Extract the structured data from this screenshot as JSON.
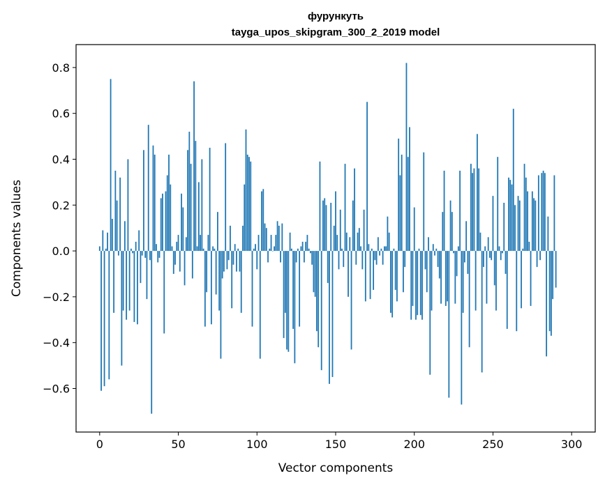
{
  "chart_data": {
    "type": "bar",
    "title": "фурункуть",
    "subtitle": "tayga_upos_skipgram_300_2_2019 model",
    "xlabel": "Vector components",
    "ylabel": "Components values",
    "xlim": [
      -15,
      315
    ],
    "ylim": [
      -0.79,
      0.9
    ],
    "xticks": [
      0,
      50,
      100,
      150,
      200,
      250,
      300
    ],
    "yticks": [
      -0.6,
      -0.4,
      -0.2,
      0.0,
      0.2,
      0.4,
      0.6,
      0.8
    ],
    "ytick_labels": [
      "−0.6",
      "−0.4",
      "−0.2",
      "0.0",
      "0.2",
      "0.4",
      "0.6",
      "0.8"
    ],
    "bar_color": "#1f77b4",
    "values": [
      0.02,
      -0.61,
      0.09,
      -0.59,
      0.01,
      0.08,
      -0.56,
      0.75,
      0.14,
      -0.27,
      0.35,
      0.22,
      -0.02,
      0.32,
      -0.5,
      -0.26,
      0.13,
      -0.3,
      0.4,
      -0.26,
      0.01,
      -0.01,
      -0.31,
      0.04,
      -0.32,
      0.09,
      -0.14,
      -0.02,
      0.44,
      -0.03,
      -0.21,
      0.55,
      -0.04,
      -0.71,
      0.46,
      0.42,
      0.03,
      -0.05,
      -0.03,
      0.23,
      0.25,
      -0.36,
      0.26,
      0.33,
      0.42,
      0.29,
      0.02,
      -0.1,
      -0.06,
      0.04,
      0.07,
      -0.09,
      0.25,
      0.19,
      -0.15,
      0.06,
      0.44,
      0.52,
      0.38,
      -0.12,
      0.74,
      0.48,
      0.02,
      0.3,
      0.07,
      0.4,
      0.01,
      -0.33,
      -0.18,
      0.07,
      0.45,
      -0.32,
      0.02,
      0.01,
      -0.19,
      0.17,
      -0.26,
      -0.47,
      -0.12,
      -0.09,
      0.47,
      -0.08,
      -0.04,
      0.11,
      -0.25,
      -0.06,
      0.03,
      -0.09,
      0.01,
      -0.09,
      -0.27,
      0.11,
      0.29,
      0.53,
      0.42,
      0.41,
      0.39,
      -0.33,
      0.01,
      0.03,
      -0.08,
      0.07,
      -0.47,
      0.26,
      0.27,
      0.12,
      0.1,
      -0.05,
      0.01,
      0.07,
      0.0,
      0.02,
      0.07,
      0.13,
      0.11,
      -0.05,
      0.12,
      -0.38,
      -0.27,
      -0.43,
      -0.44,
      0.08,
      0.01,
      -0.34,
      -0.49,
      -0.05,
      0.01,
      -0.33,
      0.02,
      0.04,
      -0.05,
      0.04,
      0.07,
      0.01,
      -0.01,
      -0.06,
      -0.18,
      -0.2,
      -0.35,
      -0.42,
      0.39,
      -0.52,
      0.22,
      0.23,
      0.2,
      -0.14,
      -0.58,
      0.21,
      -0.55,
      0.11,
      0.26,
      0.07,
      -0.08,
      0.18,
      0.01,
      -0.07,
      0.38,
      0.08,
      -0.2,
      0.06,
      -0.43,
      0.22,
      0.36,
      -0.06,
      0.08,
      0.1,
      0.02,
      -0.08,
      0.18,
      -0.22,
      0.65,
      0.03,
      -0.21,
      0.01,
      -0.17,
      -0.04,
      -0.06,
      0.06,
      -0.02,
      0.01,
      -0.06,
      0.02,
      0.02,
      0.15,
      0.08,
      -0.27,
      -0.29,
      0.01,
      -0.17,
      -0.22,
      0.49,
      0.33,
      0.42,
      -0.18,
      -0.07,
      0.82,
      0.41,
      0.54,
      -0.3,
      -0.24,
      0.19,
      -0.3,
      -0.28,
      0.01,
      -0.28,
      -0.3,
      0.43,
      -0.08,
      -0.18,
      0.06,
      -0.54,
      -0.26,
      0.03,
      -0.02,
      0.01,
      -0.07,
      -0.12,
      -0.23,
      0.17,
      0.35,
      -0.24,
      -0.22,
      -0.64,
      0.22,
      0.17,
      -0.01,
      -0.23,
      -0.11,
      0.02,
      0.35,
      -0.67,
      -0.27,
      -0.05,
      0.13,
      -0.1,
      -0.42,
      0.38,
      0.34,
      0.36,
      -0.26,
      0.51,
      0.36,
      0.08,
      -0.53,
      -0.07,
      0.02,
      -0.23,
      0.06,
      -0.03,
      -0.04,
      0.24,
      -0.15,
      -0.26,
      0.41,
      0.02,
      -0.04,
      -0.01,
      0.21,
      -0.1,
      -0.34,
      0.32,
      0.31,
      0.29,
      0.62,
      0.2,
      -0.35,
      0.24,
      0.22,
      -0.25,
      0.01,
      0.38,
      0.32,
      0.26,
      0.04,
      -0.24,
      0.26,
      0.23,
      0.22,
      -0.07,
      0.33,
      -0.04,
      0.34,
      0.35,
      0.34,
      -0.46,
      0.15,
      -0.35,
      -0.37,
      -0.21,
      0.33,
      -0.16
    ]
  }
}
